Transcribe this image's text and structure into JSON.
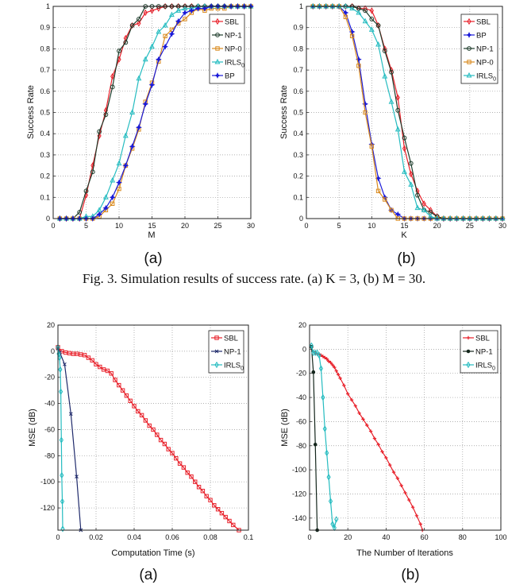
{
  "caption": "Fig. 3.   Simulation results of success rate. (a) K = 3, (b) M = 30.",
  "chart_data": [
    {
      "type": "line",
      "panel_label": "(a)",
      "xlabel": "M",
      "ylabel": "Success Rate",
      "xlim": [
        0,
        30
      ],
      "ylim": [
        0,
        1
      ],
      "xticks": [
        0,
        5,
        10,
        15,
        20,
        25,
        30
      ],
      "yticks": [
        0,
        0.1,
        0.2,
        0.3,
        0.4,
        0.5,
        0.6,
        0.7,
        0.8,
        0.9,
        1
      ],
      "grid": true,
      "legend_position": "top-right",
      "x": [
        1,
        2,
        3,
        4,
        5,
        6,
        7,
        8,
        9,
        10,
        11,
        12,
        13,
        14,
        15,
        16,
        17,
        18,
        19,
        20,
        21,
        22,
        23,
        24,
        25,
        26,
        27,
        28,
        29,
        30
      ],
      "series": [
        {
          "name": "SBL",
          "color": "#e8202a",
          "marker": "diamond",
          "values": [
            0,
            0,
            0,
            0,
            0.11,
            0.25,
            0.39,
            0.51,
            0.67,
            0.75,
            0.85,
            0.91,
            0.92,
            0.97,
            0.98,
            0.99,
            1,
            1,
            1,
            1,
            1,
            1,
            1,
            1,
            1,
            1,
            1,
            1,
            1,
            1
          ]
        },
        {
          "name": "NP-1",
          "color": "#1d3b2a",
          "marker": "circle",
          "values": [
            0,
            0,
            0,
            0.03,
            0.13,
            0.22,
            0.41,
            0.49,
            0.62,
            0.79,
            0.83,
            0.91,
            0.94,
            1,
            1,
            1,
            1,
            1,
            1,
            1,
            1,
            1,
            1,
            1,
            1,
            1,
            1,
            1,
            1,
            1
          ]
        },
        {
          "name": "NP-0",
          "color": "#d98a1e",
          "marker": "square",
          "values": [
            0,
            0,
            0,
            0,
            0,
            0,
            0.01,
            0.04,
            0.07,
            0.14,
            0.25,
            0.33,
            0.42,
            0.55,
            0.64,
            0.74,
            0.86,
            0.89,
            0.92,
            0.94,
            0.97,
            0.99,
            0.98,
            0.99,
            0.99,
            0.99,
            1,
            1,
            1,
            1
          ]
        },
        {
          "name": "IRLS0",
          "color": "#25bcc0",
          "marker": "triangle",
          "values": [
            0,
            0,
            0,
            0,
            0.01,
            0.01,
            0.04,
            0.1,
            0.18,
            0.26,
            0.39,
            0.5,
            0.66,
            0.75,
            0.81,
            0.88,
            0.91,
            0.96,
            0.98,
            0.99,
            0.99,
            1,
            1,
            1,
            1,
            1,
            1,
            1,
            1,
            1
          ]
        },
        {
          "name": "BP",
          "color": "#1a1ad8",
          "marker": "star",
          "values": [
            0,
            0,
            0,
            0,
            0,
            0,
            0.02,
            0.05,
            0.1,
            0.17,
            0.25,
            0.34,
            0.43,
            0.54,
            0.63,
            0.75,
            0.81,
            0.87,
            0.93,
            0.97,
            0.98,
            0.99,
            0.99,
            1,
            1,
            1,
            1,
            1,
            1,
            1
          ]
        }
      ]
    },
    {
      "type": "line",
      "panel_label": "(b)",
      "xlabel": "K",
      "ylabel": "Success Rate",
      "xlim": [
        0,
        30
      ],
      "ylim": [
        0,
        1
      ],
      "xticks": [
        0,
        5,
        10,
        15,
        20,
        25,
        30
      ],
      "yticks": [
        0,
        0.1,
        0.2,
        0.3,
        0.4,
        0.5,
        0.6,
        0.7,
        0.8,
        0.9,
        1
      ],
      "grid": true,
      "legend_position": "top-right",
      "x": [
        1,
        2,
        3,
        4,
        5,
        6,
        7,
        8,
        9,
        10,
        11,
        12,
        13,
        14,
        15,
        16,
        17,
        18,
        19,
        20,
        21,
        22,
        23,
        24,
        25,
        26,
        27,
        28,
        29,
        30
      ],
      "series": [
        {
          "name": "SBL",
          "color": "#e8202a",
          "marker": "diamond",
          "values": [
            1,
            1,
            1,
            1,
            1,
            1,
            1,
            0.99,
            0.99,
            0.98,
            0.91,
            0.8,
            0.7,
            0.57,
            0.33,
            0.21,
            0.13,
            0.07,
            0.04,
            0.01,
            0,
            0,
            0,
            0,
            0,
            0,
            0,
            0,
            0,
            0
          ]
        },
        {
          "name": "BP",
          "color": "#1a1ad8",
          "marker": "star",
          "values": [
            1,
            1,
            1,
            1,
            1,
            0.97,
            0.88,
            0.75,
            0.54,
            0.35,
            0.19,
            0.1,
            0.04,
            0.02,
            0,
            0,
            0,
            0,
            0,
            0,
            0,
            0,
            0,
            0,
            0,
            0,
            0,
            0,
            0,
            0
          ]
        },
        {
          "name": "NP-1",
          "color": "#1d3b2a",
          "marker": "circle",
          "values": [
            1,
            1,
            1,
            1,
            1,
            1,
            1,
            0.99,
            0.98,
            0.94,
            0.91,
            0.79,
            0.69,
            0.51,
            0.38,
            0.26,
            0.11,
            0.04,
            0.03,
            0.01,
            0,
            0,
            0,
            0,
            0,
            0,
            0,
            0,
            0,
            0
          ]
        },
        {
          "name": "NP-0",
          "color": "#d98a1e",
          "marker": "square",
          "values": [
            1,
            1,
            1,
            1,
            1,
            0.95,
            0.86,
            0.72,
            0.5,
            0.34,
            0.13,
            0.09,
            0.04,
            0,
            0,
            0,
            0,
            0,
            0,
            0,
            0,
            0,
            0,
            0,
            0,
            0,
            0,
            0,
            0,
            0
          ]
        },
        {
          "name": "IRLS0",
          "color": "#25bcc0",
          "marker": "triangle",
          "values": [
            1,
            1,
            1,
            1,
            1,
            1,
            0.99,
            0.97,
            0.93,
            0.89,
            0.82,
            0.67,
            0.55,
            0.42,
            0.22,
            0.16,
            0.05,
            0.04,
            0.01,
            0,
            0,
            0,
            0,
            0,
            0,
            0,
            0,
            0,
            0,
            0
          ]
        }
      ]
    },
    {
      "type": "line",
      "panel_label": "(a)",
      "xlabel": "Computation Time (s)",
      "ylabel": "MSE (dB)",
      "xlim": [
        0,
        0.1
      ],
      "ylim": [
        -137,
        20
      ],
      "xticks": [
        0,
        0.02,
        0.04,
        0.06,
        0.08,
        0.1
      ],
      "xtick_labels": [
        "0",
        "0.02",
        "0.04",
        "0.06",
        "0.08",
        "0.1"
      ],
      "yticks": [
        20,
        0,
        -20,
        -40,
        -60,
        -80,
        -100,
        -120
      ],
      "grid": true,
      "legend_position": "top-right",
      "series": [
        {
          "name": "SBL",
          "color": "#e8202a",
          "marker": "square",
          "points": [
            [
              0,
              3
            ],
            [
              0.002,
              0
            ],
            [
              0.004,
              -1
            ],
            [
              0.006,
              -1.5
            ],
            [
              0.008,
              -2
            ],
            [
              0.01,
              -2
            ],
            [
              0.012,
              -2.5
            ],
            [
              0.014,
              -3
            ],
            [
              0.016,
              -5
            ],
            [
              0.018,
              -7
            ],
            [
              0.02,
              -10
            ],
            [
              0.022,
              -12
            ],
            [
              0.024,
              -14
            ],
            [
              0.026,
              -15
            ],
            [
              0.028,
              -17
            ],
            [
              0.03,
              -22
            ],
            [
              0.032,
              -26
            ],
            [
              0.034,
              -30
            ],
            [
              0.036,
              -34
            ],
            [
              0.038,
              -38
            ],
            [
              0.04,
              -42
            ],
            [
              0.042,
              -46
            ],
            [
              0.044,
              -49
            ],
            [
              0.046,
              -53
            ],
            [
              0.048,
              -57
            ],
            [
              0.05,
              -60
            ],
            [
              0.052,
              -64
            ],
            [
              0.054,
              -68
            ],
            [
              0.056,
              -71
            ],
            [
              0.058,
              -75
            ],
            [
              0.06,
              -78
            ],
            [
              0.062,
              -82
            ],
            [
              0.064,
              -86
            ],
            [
              0.066,
              -89
            ],
            [
              0.068,
              -93
            ],
            [
              0.07,
              -96
            ],
            [
              0.072,
              -100
            ],
            [
              0.074,
              -104
            ],
            [
              0.076,
              -107
            ],
            [
              0.078,
              -111
            ],
            [
              0.08,
              -114
            ],
            [
              0.082,
              -118
            ],
            [
              0.084,
              -121
            ],
            [
              0.086,
              -124
            ],
            [
              0.088,
              -127
            ],
            [
              0.09,
              -130
            ],
            [
              0.092,
              -133
            ],
            [
              0.095,
              -137
            ]
          ]
        },
        {
          "name": "NP-1",
          "color": "#1f2a6b",
          "marker": "x",
          "points": [
            [
              0,
              2
            ],
            [
              0.001,
              -1
            ],
            [
              0.0035,
              -10
            ],
            [
              0.0068,
              -48
            ],
            [
              0.0098,
              -96
            ],
            [
              0.012,
              -137
            ]
          ]
        },
        {
          "name": "IRLS0",
          "color": "#25bcc0",
          "marker": "diamond",
          "points": [
            [
              0,
              3
            ],
            [
              0.0004,
              -2
            ],
            [
              0.0008,
              -5
            ],
            [
              0.0012,
              -14
            ],
            [
              0.0015,
              -31
            ],
            [
              0.0018,
              -68
            ],
            [
              0.002,
              -95
            ],
            [
              0.0023,
              -115
            ],
            [
              0.0025,
              -136
            ]
          ]
        }
      ]
    },
    {
      "type": "line",
      "panel_label": "(b)",
      "xlabel": "The Number of Iterations",
      "ylabel": "MSE (dB)",
      "xlim": [
        0,
        100
      ],
      "ylim": [
        -150,
        20
      ],
      "xticks": [
        0,
        20,
        40,
        60,
        80,
        100
      ],
      "yticks": [
        20,
        0,
        -20,
        -40,
        -60,
        -80,
        -100,
        -120,
        -140
      ],
      "grid": true,
      "legend_position": "top-right",
      "series": [
        {
          "name": "SBL",
          "color": "#e8202a",
          "marker": "plus",
          "points": [
            [
              1,
              2
            ],
            [
              2,
              -2
            ],
            [
              3,
              -3
            ],
            [
              4,
              -4
            ],
            [
              5,
              -4
            ],
            [
              6,
              -5
            ],
            [
              7,
              -6
            ],
            [
              8,
              -7
            ],
            [
              9,
              -8
            ],
            [
              10,
              -10
            ],
            [
              11,
              -11
            ],
            [
              12,
              -13
            ],
            [
              13,
              -15
            ],
            [
              14,
              -18
            ],
            [
              15,
              -21
            ],
            [
              16,
              -24
            ],
            [
              18,
              -30
            ],
            [
              20,
              -37
            ],
            [
              22,
              -42
            ],
            [
              24,
              -47
            ],
            [
              26,
              -53
            ],
            [
              28,
              -58
            ],
            [
              30,
              -63
            ],
            [
              32,
              -68
            ],
            [
              34,
              -74
            ],
            [
              36,
              -79
            ],
            [
              38,
              -85
            ],
            [
              40,
              -90
            ],
            [
              42,
              -96
            ],
            [
              44,
              -102
            ],
            [
              46,
              -107
            ],
            [
              48,
              -113
            ],
            [
              50,
              -119
            ],
            [
              52,
              -125
            ],
            [
              54,
              -131
            ],
            [
              56,
              -138
            ],
            [
              58,
              -145
            ],
            [
              59,
              -150
            ]
          ]
        },
        {
          "name": "NP-1",
          "color": "#14261c",
          "marker": "dot",
          "points": [
            [
              1,
              2
            ],
            [
              2,
              -19
            ],
            [
              3,
              -79
            ],
            [
              4,
              -150
            ]
          ]
        },
        {
          "name": "IRLS0",
          "color": "#25bcc0",
          "marker": "diamond",
          "points": [
            [
              1,
              3
            ],
            [
              2,
              -3
            ],
            [
              3,
              -3
            ],
            [
              4,
              -3
            ],
            [
              5,
              -5
            ],
            [
              6,
              -16
            ],
            [
              7,
              -40
            ],
            [
              8,
              -66
            ],
            [
              9,
              -86
            ],
            [
              10,
              -106
            ],
            [
              11,
              -126
            ],
            [
              12,
              -145
            ],
            [
              13,
              -148
            ],
            [
              14,
              -141
            ]
          ]
        }
      ]
    }
  ]
}
